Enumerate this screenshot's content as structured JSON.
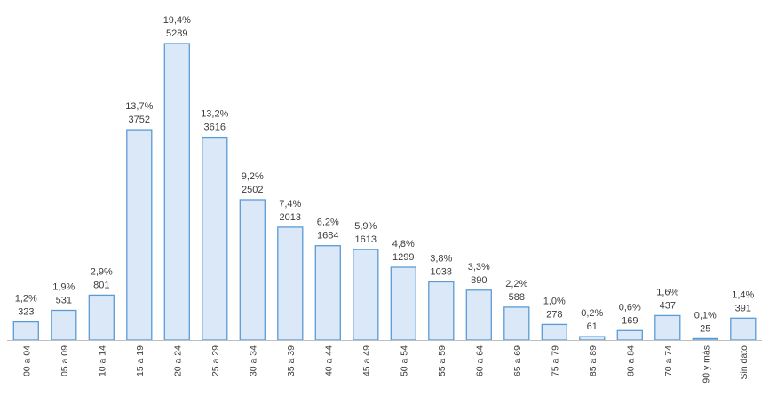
{
  "chart_data": {
    "type": "bar",
    "title": "",
    "xlabel": "",
    "ylabel": "",
    "grid": false,
    "legend": "none",
    "colors": {
      "bar_fill": "#dbe8f7",
      "bar_stroke": "#5b9bd5",
      "axis": "#bfbfbf",
      "text": "#3b3b3b"
    },
    "categories": [
      "00 a 04",
      "05 a 09",
      "10 a 14",
      "15 a 19",
      "20 a 24",
      "25 a 29",
      "30 a 34",
      "35 a 39",
      "40 a 44",
      "45 a 49",
      "50 a 54",
      "55 a 59",
      "60 a 64",
      "65 a 69",
      "75 a 79",
      "85 a 89",
      "80 a 84",
      "70 a 74",
      "90 y más",
      "Sin dato"
    ],
    "values": [
      323,
      531,
      801,
      3752,
      5289,
      3616,
      2502,
      2013,
      1684,
      1613,
      1299,
      1038,
      890,
      588,
      278,
      61,
      169,
      437,
      25,
      391
    ],
    "percent_labels": [
      "1,2%",
      "1,9%",
      "2,9%",
      "13,7%",
      "19,4%",
      "13,2%",
      "9,2%",
      "7,4%",
      "6,2%",
      "5,9%",
      "4,8%",
      "3,8%",
      "3,3%",
      "2,2%",
      "1,0%",
      "0,2%",
      "0,6%",
      "1,6%",
      "0,1%",
      "1,4%"
    ],
    "count_labels": [
      "323",
      "531",
      "801",
      "3752",
      "5289",
      "3616",
      "2502",
      "2013",
      "1684",
      "1613",
      "1299",
      "1038",
      "890",
      "588",
      "278",
      "61",
      "169",
      "437",
      "25",
      "391"
    ],
    "ylim": [
      0,
      5289
    ]
  }
}
